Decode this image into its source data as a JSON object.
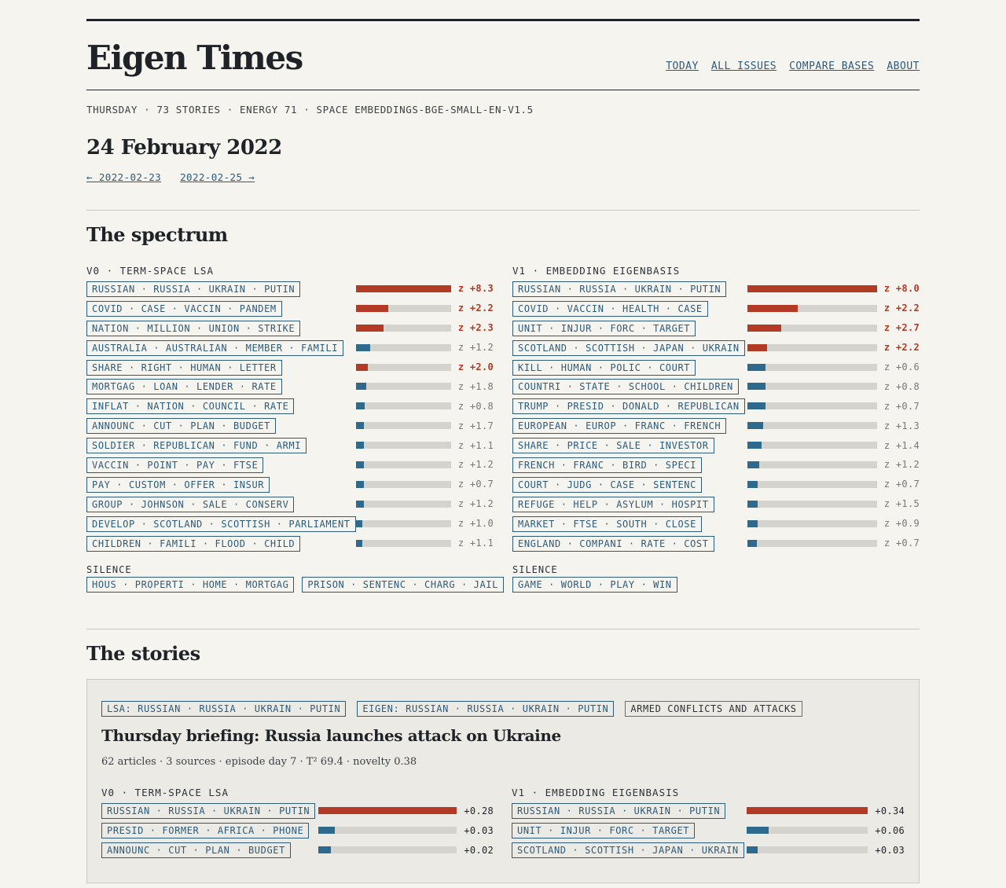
{
  "brand": "Eigen Times",
  "nav": [
    "TODAY",
    "ALL ISSUES",
    "COMPARE BASES",
    "ABOUT"
  ],
  "meta": "THURSDAY · 73 STORIES · ENERGY 71 · SPACE EMBEDDINGS-BGE-SMALL-EN-V1.5",
  "date": "24 February 2022",
  "prev_link": "← 2022-02-23",
  "next_link": "2022-02-25 →",
  "spectrum": {
    "title": "The spectrum",
    "silence_label": "SILENCE",
    "v0": {
      "heading": "V0 · TERM-SPACE LSA",
      "rows": [
        {
          "tag": "RUSSIAN · RUSSIA · UKRAIN · PUTIN",
          "fill": 1.0,
          "z": "z +8.3",
          "hot": true
        },
        {
          "tag": "COVID · CASE · VACCIN · PANDEM",
          "fill": 0.34,
          "z": "z +2.2",
          "hot": true
        },
        {
          "tag": "NATION · MILLION · UNION · STRIKE",
          "fill": 0.29,
          "z": "z +2.3",
          "hot": true
        },
        {
          "tag": "AUSTRALIA · AUSTRALIAN · MEMBER · FAMILI",
          "fill": 0.15,
          "z": "z +1.2",
          "hot": false
        },
        {
          "tag": "SHARE · RIGHT · HUMAN · LETTER",
          "fill": 0.12,
          "z": "z +2.0",
          "hot": true
        },
        {
          "tag": "MORTGAG · LOAN · LENDER · RATE",
          "fill": 0.11,
          "z": "z +1.8",
          "hot": false
        },
        {
          "tag": "INFLAT · NATION · COUNCIL · RATE",
          "fill": 0.09,
          "z": "z +0.8",
          "hot": false
        },
        {
          "tag": "ANNOUNC · CUT · PLAN · BUDGET",
          "fill": 0.08,
          "z": "z +1.7",
          "hot": false
        },
        {
          "tag": "SOLDIER · REPUBLICAN · FUND · ARMI",
          "fill": 0.08,
          "z": "z +1.1",
          "hot": false
        },
        {
          "tag": "VACCIN · POINT · PAY · FTSE",
          "fill": 0.08,
          "z": "z +1.2",
          "hot": false
        },
        {
          "tag": "PAY · CUSTOM · OFFER · INSUR",
          "fill": 0.08,
          "z": "z +0.7",
          "hot": false
        },
        {
          "tag": "GROUP · JOHNSON · SALE · CONSERV",
          "fill": 0.08,
          "z": "z +1.2",
          "hot": false
        },
        {
          "tag": "DEVELOP · SCOTLAND · SCOTTISH · PARLIAMENT",
          "fill": 0.07,
          "z": "z +1.0",
          "hot": false
        },
        {
          "tag": "CHILDREN · FAMILI · FLOOD · CHILD",
          "fill": 0.07,
          "z": "z +1.1",
          "hot": false
        }
      ],
      "silence": [
        "HOUS · PROPERTI · HOME · MORTGAG",
        "PRISON · SENTENC · CHARG · JAIL"
      ]
    },
    "v1": {
      "heading": "V1 · EMBEDDING EIGENBASIS",
      "rows": [
        {
          "tag": "RUSSIAN · RUSSIA · UKRAIN · PUTIN",
          "fill": 1.0,
          "z": "z +8.0",
          "hot": true
        },
        {
          "tag": "COVID · VACCIN · HEALTH · CASE",
          "fill": 0.39,
          "z": "z +2.2",
          "hot": true
        },
        {
          "tag": "UNIT · INJUR · FORC · TARGET",
          "fill": 0.26,
          "z": "z +2.7",
          "hot": true
        },
        {
          "tag": "SCOTLAND · SCOTTISH · JAPAN · UKRAIN",
          "fill": 0.15,
          "z": "z +2.2",
          "hot": true
        },
        {
          "tag": "KILL · HUMAN · POLIC · COURT",
          "fill": 0.14,
          "z": "z +0.6",
          "hot": false
        },
        {
          "tag": "COUNTRI · STATE · SCHOOL · CHILDREN",
          "fill": 0.14,
          "z": "z +0.8",
          "hot": false
        },
        {
          "tag": "TRUMP · PRESID · DONALD · REPUBLICAN",
          "fill": 0.14,
          "z": "z +0.7",
          "hot": false
        },
        {
          "tag": "EUROPEAN · EUROP · FRANC · FRENCH",
          "fill": 0.12,
          "z": "z +1.3",
          "hot": false
        },
        {
          "tag": "SHARE · PRICE · SALE · INVESTOR",
          "fill": 0.11,
          "z": "z +1.4",
          "hot": false
        },
        {
          "tag": "FRENCH · FRANC · BIRD · SPECI",
          "fill": 0.09,
          "z": "z +1.2",
          "hot": false
        },
        {
          "tag": "COURT · JUDG · CASE · SENTENC",
          "fill": 0.08,
          "z": "z +0.7",
          "hot": false
        },
        {
          "tag": "REFUGE · HELP · ASYLUM · HOSPIT",
          "fill": 0.08,
          "z": "z +1.5",
          "hot": false
        },
        {
          "tag": "MARKET · FTSE · SOUTH · CLOSE",
          "fill": 0.08,
          "z": "z +0.9",
          "hot": false
        },
        {
          "tag": "ENGLAND · COMPANI · RATE · COST",
          "fill": 0.07,
          "z": "z +0.7",
          "hot": false
        }
      ],
      "silence": [
        "GAME · WORLD · PLAY · WIN"
      ]
    }
  },
  "stories": {
    "title": "The stories",
    "items": [
      {
        "tags": [
          "LSA: RUSSIAN · RUSSIA · UKRAIN · PUTIN",
          "EIGEN: RUSSIAN · RUSSIA · UKRAIN · PUTIN",
          "ARMED CONFLICTS AND ATTACKS"
        ],
        "headline": "Thursday briefing: Russia launches attack on Ukraine",
        "meta": "62 articles · 3 sources · episode day 7 · T² 69.4 · novelty 0.38",
        "v0": {
          "heading": "V0 · TERM-SPACE LSA",
          "rows": [
            {
              "tag": "RUSSIAN · RUSSIA · UKRAIN · PUTIN",
              "fill": 1.0,
              "value": "+0.28",
              "hot": true
            },
            {
              "tag": "PRESID · FORMER · AFRICA · PHONE",
              "fill": 0.12,
              "value": "+0.03",
              "hot": false
            },
            {
              "tag": "ANNOUNC · CUT · PLAN · BUDGET",
              "fill": 0.09,
              "value": "+0.02",
              "hot": false
            }
          ]
        },
        "v1": {
          "heading": "V1 · EMBEDDING EIGENBASIS",
          "rows": [
            {
              "tag": "RUSSIAN · RUSSIA · UKRAIN · PUTIN",
              "fill": 1.0,
              "value": "+0.34",
              "hot": true
            },
            {
              "tag": "UNIT · INJUR · FORC · TARGET",
              "fill": 0.18,
              "value": "+0.06",
              "hot": false
            },
            {
              "tag": "SCOTLAND · SCOTTISH · JAPAN · UKRAIN",
              "fill": 0.09,
              "value": "+0.03",
              "hot": false
            }
          ]
        }
      }
    ]
  }
}
